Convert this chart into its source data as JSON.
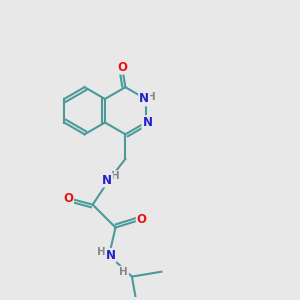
{
  "background_color": "#e8e8e8",
  "bond_color": "#4a9a9a",
  "bond_width": 1.5,
  "atom_colors": {
    "O": "#ee1111",
    "N": "#2222cc",
    "H": "#888888",
    "C": "#4a9a9a"
  },
  "font_size_atom": 8.5,
  "font_size_H": 7.5
}
